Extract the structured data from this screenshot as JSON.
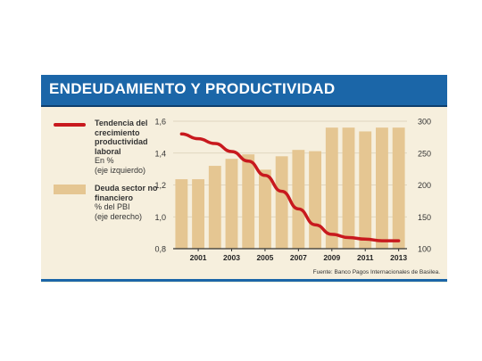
{
  "header": {
    "title": "ENDEUDAMIENTO Y PRODUCTIVIDAD"
  },
  "legend": {
    "line": {
      "name": "Tendencia del crecimiento productividad laboral",
      "unit": "En %",
      "axis_note": "(eje izquierdo)"
    },
    "bars": {
      "name": "Deuda sector no financiero",
      "unit": "% del PBI",
      "axis_note": "(eje derecho)"
    }
  },
  "source": "Fuente: Banco Pagos Internacionales de Basilea.",
  "colors": {
    "header": "#1b66a8",
    "line": "#c8191e",
    "bars": "#e5c692",
    "background": "#f6efdd"
  },
  "chart_data": {
    "type": "bar",
    "categories": [
      "2000",
      "2001",
      "2002",
      "2003",
      "2004",
      "2005",
      "2006",
      "2007",
      "2008",
      "2009",
      "2010",
      "2011",
      "2012",
      "2013"
    ],
    "x_tick_labels": [
      "2001",
      "2003",
      "2005",
      "2007",
      "2009",
      "2011",
      "2013"
    ],
    "series": [
      {
        "name": "Deuda sector no financiero",
        "axis": "right",
        "type": "bar",
        "values": [
          209,
          209,
          230,
          241,
          248,
          224,
          245,
          255,
          253,
          290,
          290,
          284,
          290,
          290
        ]
      },
      {
        "name": "Tendencia del crecimiento productividad laboral",
        "axis": "left",
        "type": "line",
        "values": [
          1.52,
          1.49,
          1.46,
          1.41,
          1.35,
          1.26,
          1.16,
          1.05,
          0.95,
          0.89,
          0.87,
          0.86,
          0.85,
          0.85
        ]
      }
    ],
    "left_axis": {
      "range": [
        0.8,
        1.6
      ],
      "ticks": [
        "0,8",
        "1,0",
        "1,2",
        "1,4",
        "1,6"
      ],
      "tick_values": [
        0.8,
        1.0,
        1.2,
        1.4,
        1.6
      ]
    },
    "right_axis": {
      "range": [
        100,
        300
      ],
      "ticks": [
        "100",
        "150",
        "200",
        "250",
        "300"
      ],
      "tick_values": [
        100,
        150,
        200,
        250,
        300
      ]
    },
    "grid": true
  }
}
